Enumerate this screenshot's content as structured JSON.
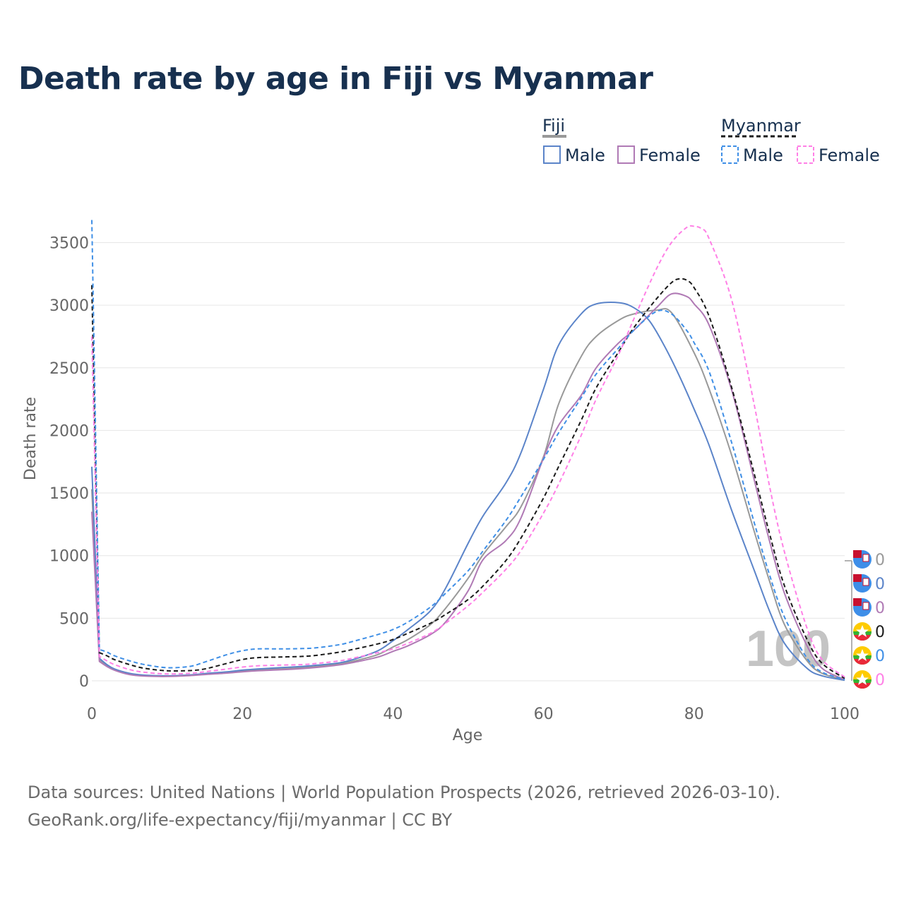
{
  "title": "Death rate by age in Fiji vs Myanmar",
  "source_line1": "Data sources: United Nations | World Population Prospects (2026, retrieved 2026-03-10).",
  "source_line2": "GeoRank.org/life-expectancy/fiji/myanmar | CC BY",
  "legend": {
    "group1": "Fiji",
    "group2": "Myanmar",
    "male": "Male",
    "female": "Female"
  },
  "watermark": "100",
  "colors": {
    "fiji_total": "#999999",
    "fiji_male": "#5b84c9",
    "fiji_female": "#b07ab5",
    "myanmar_total": "#1a1a1a",
    "myanmar_male": "#3f8fe6",
    "myanmar_female": "#ff80e6",
    "grid": "#e6e6e6",
    "axis_text": "#666666",
    "title": "#17304f"
  },
  "chart_data": {
    "type": "line",
    "title": "Death rate by age in Fiji vs Myanmar",
    "xlabel": "Age",
    "ylabel": "Death rate",
    "xlim": [
      0,
      100
    ],
    "ylim": [
      0,
      3700
    ],
    "xticks": [
      0,
      20,
      40,
      60,
      80,
      100
    ],
    "yticks": [
      0,
      500,
      1000,
      1500,
      2000,
      2500,
      3000,
      3500
    ],
    "grid": true,
    "legend_position": "top-right",
    "series": [
      {
        "name": "Fiji",
        "key": "fiji_total",
        "dashed": false,
        "end_label": "0",
        "x": [
          0,
          1,
          2,
          3,
          5,
          7,
          10,
          13,
          15,
          18,
          20,
          22,
          25,
          28,
          30,
          33,
          35,
          38,
          40,
          42,
          45,
          47,
          50,
          52,
          55,
          57,
          60,
          62,
          65,
          67,
          70,
          72,
          75,
          77,
          80,
          82,
          85,
          88,
          90,
          92,
          95,
          97,
          100
        ],
        "y": [
          1530,
          170,
          125,
          90,
          55,
          42,
          38,
          45,
          55,
          68,
          80,
          88,
          95,
          105,
          115,
          135,
          160,
          210,
          270,
          330,
          450,
          580,
          820,
          1010,
          1230,
          1390,
          1790,
          2210,
          2590,
          2750,
          2880,
          2930,
          2960,
          2940,
          2620,
          2330,
          1800,
          1190,
          800,
          450,
          160,
          60,
          10
        ]
      },
      {
        "name": "Fiji Male",
        "key": "fiji_male",
        "dashed": false,
        "end_label": "0",
        "x": [
          0,
          1,
          2,
          3,
          5,
          7,
          10,
          13,
          15,
          18,
          20,
          22,
          25,
          28,
          30,
          33,
          35,
          38,
          40,
          42,
          45,
          47,
          50,
          52,
          55,
          57,
          60,
          62,
          65,
          67,
          70,
          72,
          74,
          76,
          78,
          80,
          82,
          85,
          88,
          90,
          92,
          95,
          97,
          100
        ],
        "y": [
          1710,
          180,
          130,
          95,
          60,
          45,
          40,
          47,
          58,
          72,
          85,
          95,
          105,
          115,
          125,
          145,
          175,
          240,
          320,
          410,
          560,
          740,
          1100,
          1320,
          1580,
          1820,
          2330,
          2680,
          2930,
          3010,
          3020,
          2980,
          2880,
          2680,
          2440,
          2170,
          1880,
          1360,
          880,
          560,
          300,
          100,
          40,
          5
        ]
      },
      {
        "name": "Fiji Female",
        "key": "fiji_female",
        "dashed": false,
        "end_label": "0",
        "x": [
          0,
          1,
          2,
          3,
          5,
          7,
          10,
          13,
          15,
          18,
          20,
          22,
          25,
          28,
          30,
          33,
          35,
          38,
          40,
          42,
          45,
          47,
          50,
          52,
          55,
          57,
          60,
          62,
          65,
          67,
          70,
          72,
          75,
          77,
          79,
          80,
          82,
          85,
          88,
          90,
          92,
          95,
          97,
          100
        ],
        "y": [
          1350,
          155,
          115,
          85,
          50,
          38,
          35,
          42,
          50,
          62,
          72,
          80,
          88,
          98,
          108,
          128,
          150,
          190,
          235,
          280,
          370,
          470,
          720,
          970,
          1120,
          1300,
          1780,
          2040,
          2280,
          2500,
          2700,
          2800,
          2980,
          3090,
          3070,
          3010,
          2840,
          2320,
          1600,
          1120,
          700,
          280,
          100,
          10
        ]
      },
      {
        "name": "Myanmar",
        "key": "myanmar_total",
        "dashed": true,
        "end_label": "0",
        "x": [
          0,
          1,
          2,
          3,
          5,
          7,
          10,
          13,
          15,
          18,
          20,
          22,
          25,
          28,
          30,
          33,
          35,
          38,
          40,
          42,
          45,
          47,
          50,
          52,
          55,
          57,
          60,
          62,
          65,
          67,
          70,
          72,
          75,
          77,
          78,
          79,
          80,
          82,
          85,
          88,
          90,
          92,
          95,
          97,
          100
        ],
        "y": [
          3160,
          225,
          200,
          170,
          130,
          100,
          80,
          82,
          95,
          140,
          170,
          185,
          190,
          195,
          205,
          230,
          255,
          295,
          330,
          380,
          460,
          530,
          650,
          760,
          960,
          1140,
          1460,
          1710,
          2080,
          2340,
          2630,
          2820,
          3050,
          3180,
          3210,
          3200,
          3140,
          2910,
          2340,
          1650,
          1180,
          760,
          330,
          140,
          20
        ]
      },
      {
        "name": "Myanmar Male",
        "key": "myanmar_male",
        "dashed": true,
        "end_label": "0",
        "x": [
          0,
          1,
          2,
          3,
          5,
          7,
          10,
          13,
          15,
          18,
          20,
          22,
          25,
          28,
          30,
          33,
          35,
          38,
          40,
          42,
          45,
          47,
          50,
          52,
          55,
          57,
          60,
          62,
          65,
          67,
          70,
          72,
          75,
          77,
          79,
          80,
          82,
          85,
          88,
          90,
          92,
          95,
          97,
          100
        ],
        "y": [
          3680,
          250,
          230,
          200,
          160,
          130,
          105,
          115,
          150,
          210,
          240,
          255,
          255,
          258,
          265,
          290,
          320,
          370,
          410,
          470,
          590,
          700,
          880,
          1040,
          1280,
          1470,
          1770,
          1980,
          2260,
          2450,
          2660,
          2800,
          2950,
          2930,
          2800,
          2700,
          2470,
          1900,
          1260,
          850,
          510,
          180,
          70,
          10
        ]
      },
      {
        "name": "Myanmar Female",
        "key": "myanmar_female",
        "dashed": true,
        "end_label": "0",
        "x": [
          0,
          1,
          2,
          3,
          5,
          7,
          10,
          13,
          15,
          18,
          20,
          22,
          25,
          28,
          30,
          33,
          35,
          38,
          40,
          42,
          45,
          47,
          50,
          52,
          55,
          57,
          60,
          62,
          65,
          67,
          70,
          72,
          75,
          77,
          79,
          80,
          81,
          82,
          85,
          88,
          90,
          92,
          95,
          97,
          100
        ],
        "y": [
          2750,
          195,
          160,
          130,
          90,
          68,
          55,
          60,
          72,
          95,
          110,
          120,
          125,
          130,
          140,
          160,
          185,
          225,
          255,
          300,
          380,
          460,
          600,
          710,
          890,
          1040,
          1340,
          1570,
          1960,
          2250,
          2610,
          2890,
          3290,
          3500,
          3620,
          3630,
          3610,
          3530,
          3040,
          2200,
          1560,
          1030,
          420,
          170,
          30
        ]
      }
    ]
  }
}
